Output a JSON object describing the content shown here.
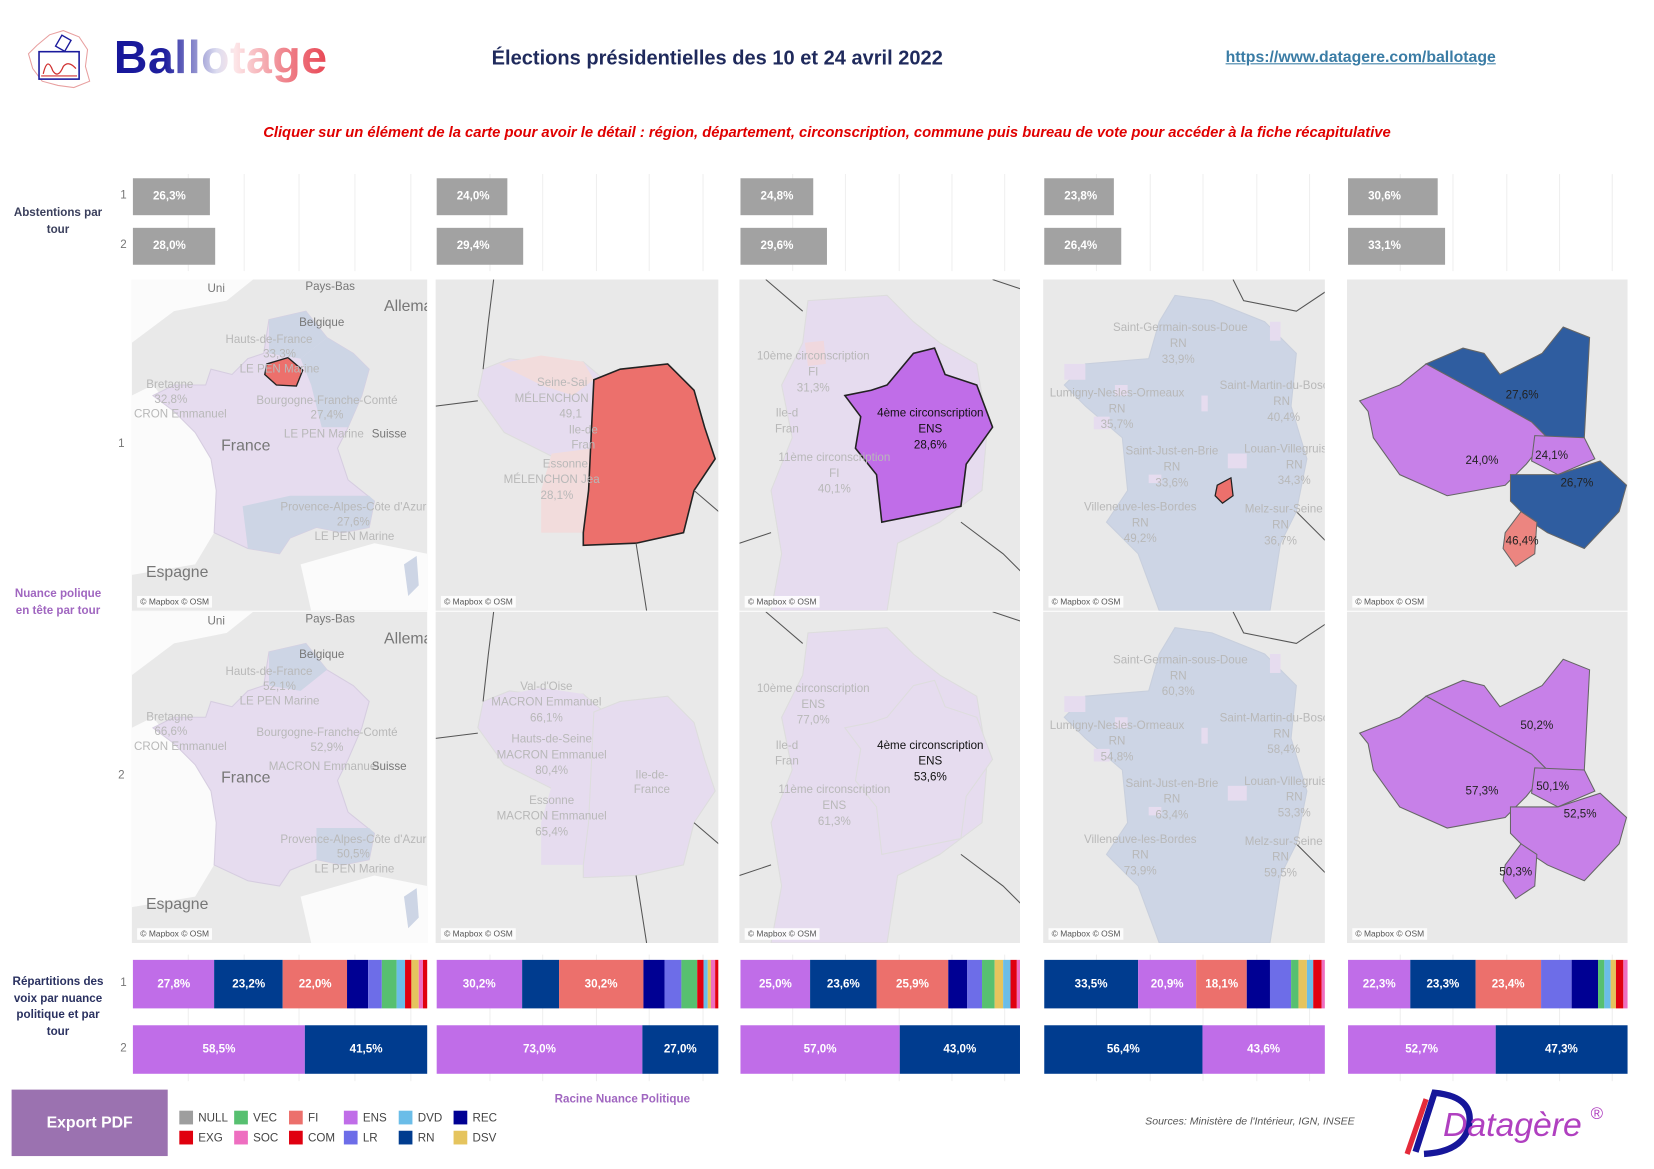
{
  "header": {
    "brand": "Ballotage",
    "brand_mark": "®",
    "title": "Élections présidentielles des 10 et 24 avril 2022",
    "url": "https://www.datagere.com/ballotage",
    "instruction": "Cliquer sur un élément de la carte pour avoir le détail : région, département, circonscription, commune puis bureau de vote pour accéder à la fiche récapitulative"
  },
  "side_labels": {
    "abstentions": "Abstentions par tour",
    "nuance": "Nuance polique en tête par tour",
    "repartition": "Répartitions des voix par nuance politique et par tour"
  },
  "tours": [
    "1",
    "2"
  ],
  "abstentions": [
    {
      "t1": 26.3,
      "t1_label": "26,3%",
      "t2": 28.0,
      "t2_label": "28,0%"
    },
    {
      "t1": 24.0,
      "t1_label": "24,0%",
      "t2": 29.4,
      "t2_label": "29,4%"
    },
    {
      "t1": 24.8,
      "t1_label": "24,8%",
      "t2": 29.6,
      "t2_label": "29,6%"
    },
    {
      "t1": 23.8,
      "t1_label": "23,8%",
      "t2": 26.4,
      "t2_label": "26,4%"
    },
    {
      "t1": 30.6,
      "t1_label": "30,6%",
      "t2": 33.1,
      "t2_label": "33,1%"
    }
  ],
  "map_credit": "© Mapbox © OSM",
  "maps": [
    {
      "t1_labels": [
        "Uni",
        "Pays-Bas",
        "Allema",
        "Belgique",
        "Hauts-de-France",
        "33,3%",
        "LE PEN Marine",
        "Bretagne",
        "32,8%",
        "CRON Emmanuel",
        "Bourgogne-Franche-Comté",
        "27,4%",
        "France",
        "LE PEN Marine",
        "Suisse",
        "Provence-Alpes-Côte d'Azur",
        "27,6%",
        "LE PEN Marine",
        "Espagne"
      ],
      "t2_labels": [
        "Uni",
        "Pays-Bas",
        "Allema",
        "Belgique",
        "Hauts-de-France",
        "52,1%",
        "LE PEN Marine",
        "Bretagne",
        "66,6%",
        "CRON Emmanuel",
        "Bourgogne-Franche-Comté",
        "52,9%",
        "France",
        "MACRON Emmanuel",
        "Suisse",
        "Provence-Alpes-Côte d'Azur",
        "50,5%",
        "LE PEN Marine",
        "Espagne"
      ]
    },
    {
      "t1_labels": [
        "Seine-Sai",
        "MÉLENCHON",
        "49,1",
        "Ile-de",
        "Fran",
        "Essonne",
        "MÉLENCHON Jea",
        "28,1%"
      ],
      "t2_labels": [
        "Val-d'Oise",
        "MACRON Emmanuel",
        "66,1%",
        "Hauts-de-Seine",
        "MACRON Emmanuel",
        "80,4%",
        "Ile-de-",
        "France",
        "Essonne",
        "MACRON Emmanuel",
        "65,4%"
      ]
    },
    {
      "t1_labels": [
        "10ème circonscription",
        "FI",
        "31,3%",
        "Ile-d",
        "Fran",
        "11ème circonscription",
        "FI",
        "40,1%",
        "4ème circonscription",
        "ENS",
        "28,6%"
      ],
      "t2_labels": [
        "10ème circonscription",
        "ENS",
        "77,0%",
        "Ile-d",
        "Fran",
        "11ème circonscription",
        "ENS",
        "61,3%",
        "4ème circonscription",
        "ENS",
        "53,6%"
      ]
    },
    {
      "t1_labels": [
        "Saint-Germain-sous-Doue",
        "RN",
        "33,9%",
        "Lumigny-Nesles-Ormeaux",
        "RN",
        "35,7%",
        "Saint-Martin-du-Bosch",
        "RN",
        "40,4%",
        "Saint-Just-en-Brie",
        "RN",
        "33,6%",
        "Louan-Villegruis-Fo",
        "RN",
        "34,3%",
        "Villeneuve-les-Bordes",
        "RN",
        "49,2%",
        "Melz-sur-Seine",
        "RN",
        "36,7%"
      ],
      "t2_labels": [
        "Saint-Germain-sous-Doue",
        "RN",
        "60,3%",
        "Lumigny-Nesles-Ormeaux",
        "RN",
        "54,8%",
        "Saint-Martin-du-Bosch",
        "RN",
        "58,4%",
        "Saint-Just-en-Brie",
        "RN",
        "63,4%",
        "Louan-Villegruis-Fo",
        "RN",
        "53,3%",
        "Villeneuve-les-Bordes",
        "RN",
        "73,9%",
        "Melz-sur-Seine",
        "RN",
        "59,5%"
      ]
    },
    {
      "t1_labels": [
        "27,6%",
        "24,0%",
        "24,1%",
        "26,7%",
        "46,4%"
      ],
      "t2_labels": [
        "50,2%",
        "57,3%",
        "50,1%",
        "52,5%",
        "50,3%"
      ]
    }
  ],
  "votes": [
    {
      "t1": [
        {
          "p": "ENS",
          "v": 27.8,
          "l": "27,8%"
        },
        {
          "p": "RN",
          "v": 23.2,
          "l": "23,2%"
        },
        {
          "p": "FI",
          "v": 22.0,
          "l": "22,0%"
        },
        {
          "p": "REC",
          "v": 7.0
        },
        {
          "p": "LR",
          "v": 4.8
        },
        {
          "p": "VEC",
          "v": 4.8
        },
        {
          "p": "DVD",
          "v": 3.1
        },
        {
          "p": "COM",
          "v": 2.2
        },
        {
          "p": "DSV",
          "v": 2.4
        },
        {
          "p": "SOC",
          "v": 1.5
        },
        {
          "p": "EXG",
          "v": 1.3
        }
      ],
      "t2": [
        {
          "p": "ENS",
          "v": 58.5,
          "l": "58,5%"
        },
        {
          "p": "RN",
          "v": 41.5,
          "l": "41,5%"
        }
      ]
    },
    {
      "t1": [
        {
          "p": "ENS",
          "v": 30.2,
          "l": "30,2%"
        },
        {
          "p": "RN",
          "v": 13.1
        },
        {
          "p": "FI",
          "v": 30.2,
          "l": "30,2%"
        },
        {
          "p": "REC",
          "v": 7.3
        },
        {
          "p": "LR",
          "v": 6.2
        },
        {
          "p": "VEC",
          "v": 5.6
        },
        {
          "p": "COM",
          "v": 2.1
        },
        {
          "p": "DVD",
          "v": 1.5
        },
        {
          "p": "DSV",
          "v": 1.3
        },
        {
          "p": "SOC",
          "v": 1.5
        },
        {
          "p": "EXG",
          "v": 1.0
        }
      ],
      "t2": [
        {
          "p": "ENS",
          "v": 73.0,
          "l": "73,0%"
        },
        {
          "p": "RN",
          "v": 27.0,
          "l": "27,0%"
        }
      ]
    },
    {
      "t1": [
        {
          "p": "ENS",
          "v": 25.0,
          "l": "25,0%"
        },
        {
          "p": "RN",
          "v": 23.6,
          "l": "23,6%"
        },
        {
          "p": "FI",
          "v": 25.9,
          "l": "25,9%"
        },
        {
          "p": "REC",
          "v": 6.5
        },
        {
          "p": "LR",
          "v": 5.5
        },
        {
          "p": "VEC",
          "v": 4.5
        },
        {
          "p": "DSV",
          "v": 3.0
        },
        {
          "p": "DVD",
          "v": 2.5
        },
        {
          "p": "COM",
          "v": 2.5
        },
        {
          "p": "SOC",
          "v": 1.0
        }
      ],
      "t2": [
        {
          "p": "ENS",
          "v": 57.0,
          "l": "57,0%"
        },
        {
          "p": "RN",
          "v": 43.0,
          "l": "43,0%"
        }
      ]
    },
    {
      "t1": [
        {
          "p": "RN",
          "v": 33.5,
          "l": "33,5%"
        },
        {
          "p": "ENS",
          "v": 20.9,
          "l": "20,9%"
        },
        {
          "p": "FI",
          "v": 18.1,
          "l": "18,1%"
        },
        {
          "p": "REC",
          "v": 8.2
        },
        {
          "p": "LR",
          "v": 7.5
        },
        {
          "p": "VEC",
          "v": 2.8
        },
        {
          "p": "DSV",
          "v": 2.9
        },
        {
          "p": "DVD",
          "v": 2.1
        },
        {
          "p": "COM",
          "v": 3.3
        },
        {
          "p": "SOC",
          "v": 1.0
        }
      ],
      "t2": [
        {
          "p": "RN",
          "v": 56.4,
          "l": "56,4%"
        },
        {
          "p": "ENS",
          "v": 43.6,
          "l": "43,6%"
        }
      ]
    },
    {
      "t1": [
        {
          "p": "ENS",
          "v": 22.3,
          "l": "22,3%"
        },
        {
          "p": "RN",
          "v": 23.3,
          "l": "23,3%"
        },
        {
          "p": "FI",
          "v": 23.4,
          "l": "23,4%"
        },
        {
          "p": "LR",
          "v": 10.9
        },
        {
          "p": "REC",
          "v": 9.4
        },
        {
          "p": "VEC",
          "v": 2.5
        },
        {
          "p": "DVD",
          "v": 2.0
        },
        {
          "p": "DSV",
          "v": 2.2
        },
        {
          "p": "COM",
          "v": 2.5
        },
        {
          "p": "SOC",
          "v": 1.5
        }
      ],
      "t2": [
        {
          "p": "ENS",
          "v": 52.7,
          "l": "52,7%"
        },
        {
          "p": "RN",
          "v": 47.3,
          "l": "47,3%"
        }
      ]
    }
  ],
  "legend": {
    "title": "Racine Nuance Politique",
    "items": [
      {
        "code": "NULL",
        "color": "#9e9e9e"
      },
      {
        "code": "VEC",
        "color": "#57c070"
      },
      {
        "code": "FI",
        "color": "#ec706c"
      },
      {
        "code": "ENS",
        "color": "#c06de8"
      },
      {
        "code": "DVD",
        "color": "#6bbde8"
      },
      {
        "code": "REC",
        "color": "#000093"
      },
      {
        "code": "EXG",
        "color": "#e0000e"
      },
      {
        "code": "SOC",
        "color": "#ee6ec0"
      },
      {
        "code": "COM",
        "color": "#e00010"
      },
      {
        "code": "LR",
        "color": "#6d6de8"
      },
      {
        "code": "RN",
        "color": "#003c8f"
      },
      {
        "code": "DSV",
        "color": "#e5c45e"
      }
    ]
  },
  "export_label": "Export PDF",
  "sources": "Sources: Ministère de l'Intérieur, IGN, INSEE",
  "footer_brand": "Datagère",
  "colors": {
    "abstention_bar": "#a2a2a2",
    "map_rn": "#2f5da0",
    "map_ens": "#c780e8",
    "map_fi": "#ec8580",
    "instruction": "#e00000"
  }
}
